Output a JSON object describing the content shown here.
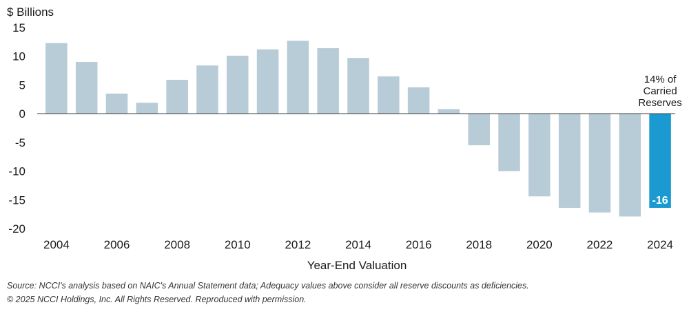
{
  "chart_data": {
    "type": "bar",
    "title": "",
    "ylabel": "$ Billions",
    "xlabel": "Year-End Valuation",
    "ylim": [
      -20,
      15
    ],
    "yticks": [
      15,
      10,
      5,
      0,
      -5,
      -10,
      -15,
      -20
    ],
    "yticks_labels": [
      "15",
      "10",
      "5",
      "0",
      "-5",
      "-10",
      "-15",
      "-20"
    ],
    "categories": [
      "2004",
      "2005",
      "2006",
      "2007",
      "2008",
      "2009",
      "2010",
      "2011",
      "2012",
      "2013",
      "2014",
      "2015",
      "2016",
      "2017",
      "2018",
      "2019",
      "2020",
      "2021",
      "2022",
      "2023",
      "2024"
    ],
    "values": [
      12.3,
      9.0,
      3.5,
      1.9,
      5.9,
      8.4,
      10.1,
      11.2,
      12.7,
      11.4,
      9.7,
      6.5,
      4.6,
      0.8,
      -5.5,
      -10.0,
      -14.4,
      -16.4,
      -17.2,
      -17.9,
      -16.4
    ],
    "xtick_labels": [
      "2004",
      "2006",
      "2008",
      "2010",
      "2012",
      "2014",
      "2016",
      "2018",
      "2020",
      "2022",
      "2024"
    ],
    "highlight": {
      "category": "2024",
      "data_label": "-16",
      "annotation": [
        "14% of",
        "Carried",
        "Reserves"
      ]
    },
    "colors": {
      "bar": "#b8ccd7",
      "highlight_bar": "#1a9ad0",
      "axis": "#333333"
    },
    "grid": false
  },
  "footnotes": {
    "source": "Source: NCCI's analysis based on NAIC's Annual Statement data; Adequacy values above consider all reserve discounts as deficiencies.",
    "copyright": "© 2025 NCCI Holdings, Inc. All Rights Reserved. Reproduced with permission."
  }
}
